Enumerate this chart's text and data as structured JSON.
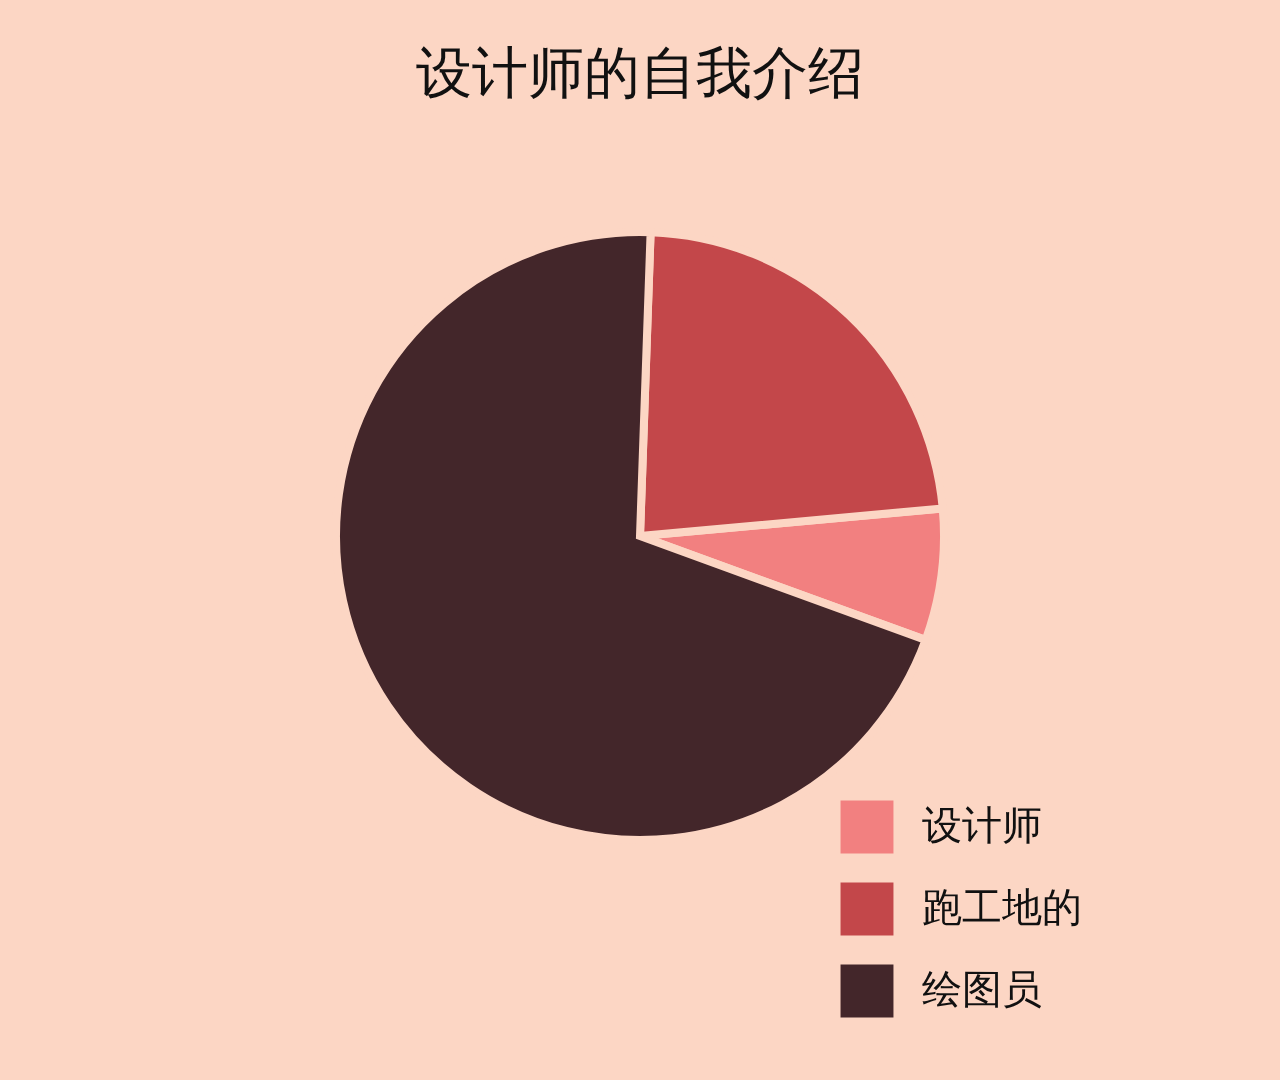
{
  "chart_data": {
    "type": "pie",
    "title": "设计师的自我介绍",
    "categories": [
      "设计师",
      "跑工地的",
      "绘图员"
    ],
    "values": [
      7,
      23,
      70
    ],
    "colors": [
      "#f28080",
      "#c3474a",
      "#43262a"
    ],
    "legend": "bottom right"
  }
}
